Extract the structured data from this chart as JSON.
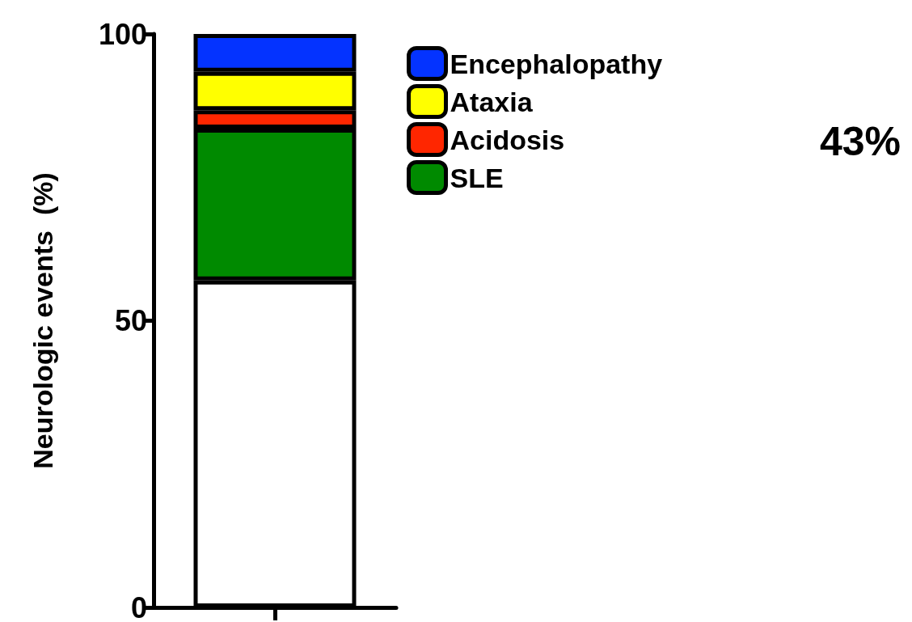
{
  "chart_data": {
    "type": "bar",
    "stacked": true,
    "ylabel": "Neurologic events  (%)",
    "categories": [
      null
    ],
    "series": [
      {
        "color": "#ffffff",
        "values": [
          57
        ]
      },
      {
        "name": "SLE",
        "color": "#008a00",
        "values": [
          26.5
        ]
      },
      {
        "name": "Acidosis",
        "color": "#ff2600",
        "values": [
          3.2
        ]
      },
      {
        "name": "Ataxia",
        "color": "#ffff00",
        "values": [
          6.7
        ]
      },
      {
        "name": "Encephalopathy",
        "color": "#0433ff",
        "values": [
          6.6
        ]
      }
    ],
    "ylim": [
      0,
      100
    ],
    "yticks": [
      0,
      50,
      100
    ],
    "grid": false,
    "legend": "top right",
    "annotations": [
      "43%"
    ]
  }
}
